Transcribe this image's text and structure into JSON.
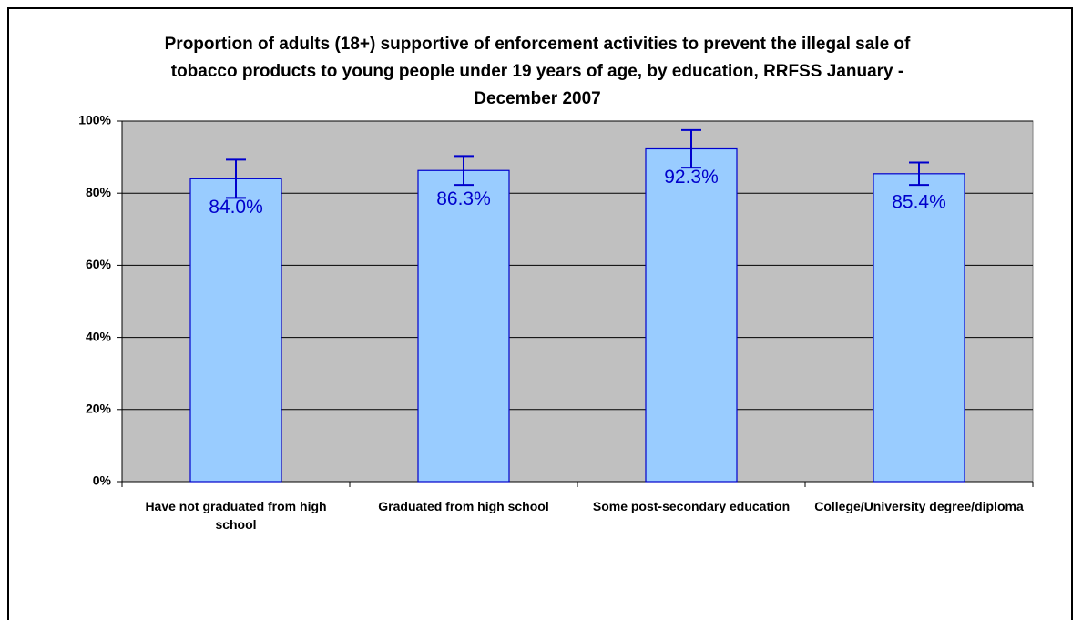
{
  "chart_data": {
    "type": "bar",
    "title": "Proportion of adults (18+) supportive of enforcement activities to prevent the illegal sale of tobacco products to young people under 19 years of age, by education, RRFSS January - December 2007",
    "categories": [
      "Have not graduated from high school",
      "Graduated from high school",
      "Some post-secondary education",
      "College/University degree/diploma"
    ],
    "values": [
      84.0,
      86.3,
      92.3,
      85.4
    ],
    "value_labels": [
      "84.0%",
      "86.3%",
      "92.3%",
      "85.4%"
    ],
    "errors": [
      5.3,
      4.0,
      5.2,
      3.1
    ],
    "color": "#99ccff",
    "ylim": [
      0,
      100
    ],
    "yticks": [
      {
        "value": 0,
        "label": "0%"
      },
      {
        "value": 20,
        "label": "20%"
      },
      {
        "value": 40,
        "label": "40%"
      },
      {
        "value": 60,
        "label": "60%"
      },
      {
        "value": 80,
        "label": "80%"
      },
      {
        "value": 100,
        "label": "100%"
      }
    ],
    "grid": true
  }
}
